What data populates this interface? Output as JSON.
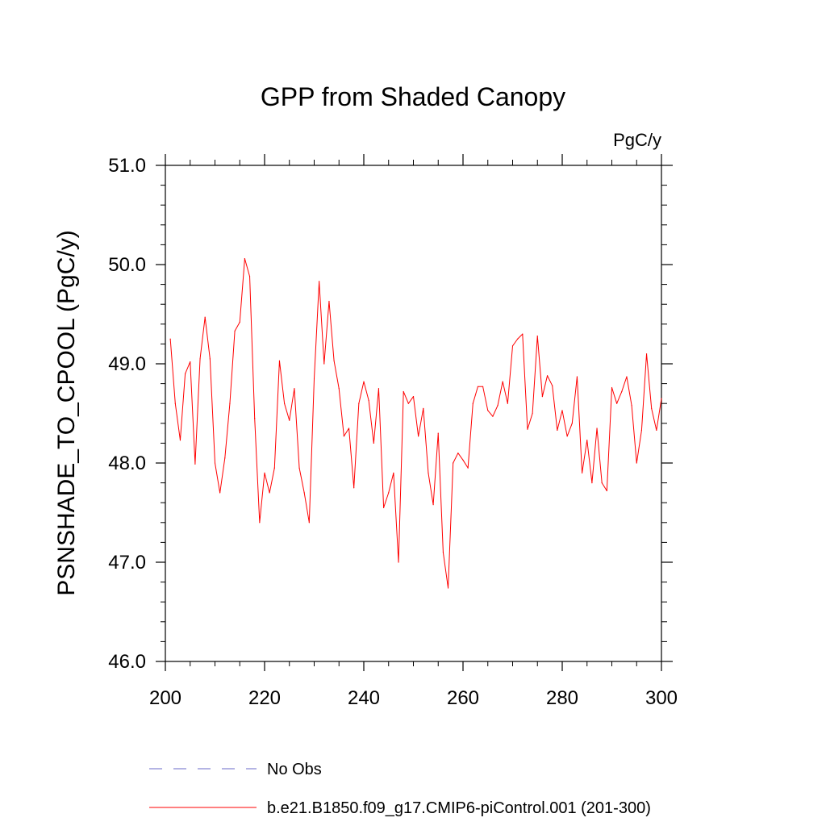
{
  "chart_data": {
    "type": "line",
    "title": "GPP from Shaded Canopy",
    "units_label": "PgC/y",
    "ylabel": "PSNSHADE_TO_CPOOL  (PgC/y)",
    "xlabel": "",
    "xlim": [
      200,
      300
    ],
    "ylim": [
      46.0,
      51.0
    ],
    "x_ticks": [
      200,
      220,
      240,
      260,
      280,
      300
    ],
    "x_tick_labels": [
      "200",
      "220",
      "240",
      "260",
      "280",
      "300"
    ],
    "y_ticks": [
      46.0,
      47.0,
      48.0,
      49.0,
      50.0,
      51.0
    ],
    "y_tick_labels": [
      "46.0",
      "47.0",
      "48.0",
      "49.0",
      "50.0",
      "51.0"
    ],
    "legend": [
      {
        "name": "No Obs",
        "color": "#6a6ac8",
        "style": "dashed"
      },
      {
        "name": "b.e21.B1850.f09_g17.CMIP6-piControl.001 (201-300)",
        "color": "#ff0000",
        "style": "solid"
      }
    ],
    "series": [
      {
        "name": "b.e21.B1850.f09_g17.CMIP6-piControl.001 (201-300)",
        "color": "#ff0000",
        "x": [
          201,
          202,
          203,
          204,
          205,
          206,
          207,
          208,
          209,
          210,
          211,
          212,
          213,
          214,
          215,
          216,
          217,
          218,
          219,
          220,
          221,
          222,
          223,
          224,
          225,
          226,
          227,
          228,
          229,
          230,
          231,
          232,
          233,
          234,
          235,
          236,
          237,
          238,
          239,
          240,
          241,
          242,
          243,
          244,
          245,
          246,
          247,
          248,
          249,
          250,
          251,
          252,
          253,
          254,
          255,
          256,
          257,
          258,
          259,
          260,
          261,
          262,
          263,
          264,
          265,
          266,
          267,
          268,
          269,
          270,
          271,
          272,
          273,
          274,
          275,
          276,
          277,
          278,
          279,
          280,
          281,
          282,
          283,
          284,
          285,
          286,
          287,
          288,
          289,
          290,
          291,
          292,
          293,
          294,
          295,
          296,
          297,
          298,
          299,
          300
        ],
        "values": [
          49.25,
          48.6,
          48.23,
          48.9,
          49.02,
          47.99,
          49.05,
          49.47,
          49.05,
          48.0,
          47.7,
          48.05,
          48.6,
          49.33,
          49.42,
          50.06,
          49.88,
          48.45,
          47.4,
          47.9,
          47.7,
          47.95,
          49.03,
          48.6,
          48.43,
          48.75,
          47.95,
          47.7,
          47.4,
          48.85,
          49.83,
          49.0,
          49.63,
          49.03,
          48.75,
          48.27,
          48.35,
          47.75,
          48.6,
          48.82,
          48.63,
          48.2,
          48.75,
          47.55,
          47.7,
          47.9,
          47.0,
          48.72,
          48.6,
          48.67,
          48.27,
          48.55,
          47.9,
          47.58,
          48.3,
          47.1,
          46.74,
          48.0,
          48.1,
          48.03,
          47.95,
          48.6,
          48.77,
          48.77,
          48.53,
          48.47,
          48.58,
          48.82,
          48.6,
          49.18,
          49.25,
          49.3,
          48.34,
          48.5,
          49.28,
          48.67,
          48.88,
          48.78,
          48.33,
          48.53,
          48.27,
          48.4,
          48.87,
          47.9,
          48.23,
          47.8,
          48.35,
          47.8,
          47.72,
          48.76,
          48.6,
          48.72,
          48.87,
          48.58,
          48.0,
          48.33,
          49.1,
          48.55,
          48.33,
          48.65
        ]
      }
    ]
  }
}
